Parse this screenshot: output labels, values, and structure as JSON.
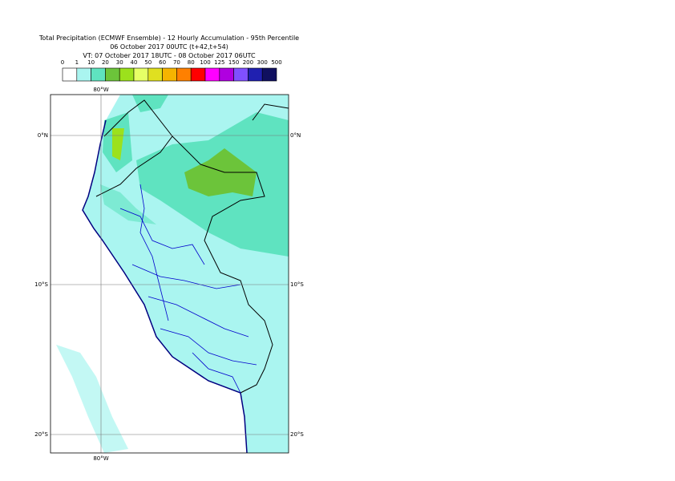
{
  "header": {
    "title": [
      "Total Precipitation (ECMWF Ensemble) - 12 Hourly Accumulation - 95th Percentile",
      "06 October 2017 00UTC (t+42,t+54)",
      "VT: 07 October 2017 18UTC - 08 October 2017 06UTC"
    ]
  },
  "colorbar": {
    "ticks": [
      "0",
      "1",
      "10",
      "20",
      "30",
      "40",
      "50",
      "60",
      "70",
      "80",
      "100",
      "125",
      "150",
      "200",
      "300",
      "500"
    ],
    "colors": [
      "#ffffff",
      "#aaf5f0",
      "#5fe3c0",
      "#6cc43a",
      "#9ce11c",
      "#e6ff66",
      "#e0e020",
      "#f5b400",
      "#ff8000",
      "#ff0000",
      "#ff00ff",
      "#b000e0",
      "#8050ff",
      "#2020b0",
      "#101060"
    ]
  },
  "map": {
    "lon_labels": [
      "80°W",
      "80°W"
    ],
    "lat_labels": [
      "0°N",
      "0°N",
      "10°S",
      "10°S",
      "20°S",
      "20°S"
    ]
  }
}
